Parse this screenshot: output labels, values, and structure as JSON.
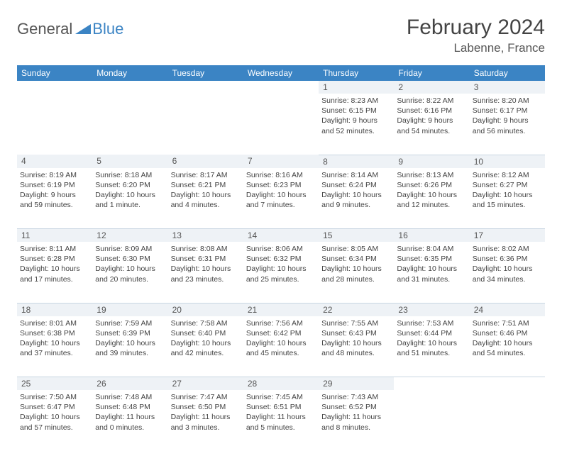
{
  "logo": {
    "general": "General",
    "blue": "Blue"
  },
  "title": "February 2024",
  "location": "Labenne, France",
  "colors": {
    "header_bg": "#3b84c4",
    "header_text": "#ffffff",
    "daynum_bg": "#eef2f6",
    "row_divider": "#c9d6e2",
    "body_text": "#444444",
    "page_bg": "#ffffff"
  },
  "weekday_labels": [
    "Sunday",
    "Monday",
    "Tuesday",
    "Wednesday",
    "Thursday",
    "Friday",
    "Saturday"
  ],
  "weeks": [
    {
      "nums": [
        "",
        "",
        "",
        "",
        "1",
        "2",
        "3"
      ],
      "cells": [
        null,
        null,
        null,
        null,
        {
          "sunrise": "Sunrise: 8:23 AM",
          "sunset": "Sunset: 6:15 PM",
          "daylight": "Daylight: 9 hours and 52 minutes."
        },
        {
          "sunrise": "Sunrise: 8:22 AM",
          "sunset": "Sunset: 6:16 PM",
          "daylight": "Daylight: 9 hours and 54 minutes."
        },
        {
          "sunrise": "Sunrise: 8:20 AM",
          "sunset": "Sunset: 6:17 PM",
          "daylight": "Daylight: 9 hours and 56 minutes."
        }
      ]
    },
    {
      "nums": [
        "4",
        "5",
        "6",
        "7",
        "8",
        "9",
        "10"
      ],
      "cells": [
        {
          "sunrise": "Sunrise: 8:19 AM",
          "sunset": "Sunset: 6:19 PM",
          "daylight": "Daylight: 9 hours and 59 minutes."
        },
        {
          "sunrise": "Sunrise: 8:18 AM",
          "sunset": "Sunset: 6:20 PM",
          "daylight": "Daylight: 10 hours and 1 minute."
        },
        {
          "sunrise": "Sunrise: 8:17 AM",
          "sunset": "Sunset: 6:21 PM",
          "daylight": "Daylight: 10 hours and 4 minutes."
        },
        {
          "sunrise": "Sunrise: 8:16 AM",
          "sunset": "Sunset: 6:23 PM",
          "daylight": "Daylight: 10 hours and 7 minutes."
        },
        {
          "sunrise": "Sunrise: 8:14 AM",
          "sunset": "Sunset: 6:24 PM",
          "daylight": "Daylight: 10 hours and 9 minutes."
        },
        {
          "sunrise": "Sunrise: 8:13 AM",
          "sunset": "Sunset: 6:26 PM",
          "daylight": "Daylight: 10 hours and 12 minutes."
        },
        {
          "sunrise": "Sunrise: 8:12 AM",
          "sunset": "Sunset: 6:27 PM",
          "daylight": "Daylight: 10 hours and 15 minutes."
        }
      ]
    },
    {
      "nums": [
        "11",
        "12",
        "13",
        "14",
        "15",
        "16",
        "17"
      ],
      "cells": [
        {
          "sunrise": "Sunrise: 8:11 AM",
          "sunset": "Sunset: 6:28 PM",
          "daylight": "Daylight: 10 hours and 17 minutes."
        },
        {
          "sunrise": "Sunrise: 8:09 AM",
          "sunset": "Sunset: 6:30 PM",
          "daylight": "Daylight: 10 hours and 20 minutes."
        },
        {
          "sunrise": "Sunrise: 8:08 AM",
          "sunset": "Sunset: 6:31 PM",
          "daylight": "Daylight: 10 hours and 23 minutes."
        },
        {
          "sunrise": "Sunrise: 8:06 AM",
          "sunset": "Sunset: 6:32 PM",
          "daylight": "Daylight: 10 hours and 25 minutes."
        },
        {
          "sunrise": "Sunrise: 8:05 AM",
          "sunset": "Sunset: 6:34 PM",
          "daylight": "Daylight: 10 hours and 28 minutes."
        },
        {
          "sunrise": "Sunrise: 8:04 AM",
          "sunset": "Sunset: 6:35 PM",
          "daylight": "Daylight: 10 hours and 31 minutes."
        },
        {
          "sunrise": "Sunrise: 8:02 AM",
          "sunset": "Sunset: 6:36 PM",
          "daylight": "Daylight: 10 hours and 34 minutes."
        }
      ]
    },
    {
      "nums": [
        "18",
        "19",
        "20",
        "21",
        "22",
        "23",
        "24"
      ],
      "cells": [
        {
          "sunrise": "Sunrise: 8:01 AM",
          "sunset": "Sunset: 6:38 PM",
          "daylight": "Daylight: 10 hours and 37 minutes."
        },
        {
          "sunrise": "Sunrise: 7:59 AM",
          "sunset": "Sunset: 6:39 PM",
          "daylight": "Daylight: 10 hours and 39 minutes."
        },
        {
          "sunrise": "Sunrise: 7:58 AM",
          "sunset": "Sunset: 6:40 PM",
          "daylight": "Daylight: 10 hours and 42 minutes."
        },
        {
          "sunrise": "Sunrise: 7:56 AM",
          "sunset": "Sunset: 6:42 PM",
          "daylight": "Daylight: 10 hours and 45 minutes."
        },
        {
          "sunrise": "Sunrise: 7:55 AM",
          "sunset": "Sunset: 6:43 PM",
          "daylight": "Daylight: 10 hours and 48 minutes."
        },
        {
          "sunrise": "Sunrise: 7:53 AM",
          "sunset": "Sunset: 6:44 PM",
          "daylight": "Daylight: 10 hours and 51 minutes."
        },
        {
          "sunrise": "Sunrise: 7:51 AM",
          "sunset": "Sunset: 6:46 PM",
          "daylight": "Daylight: 10 hours and 54 minutes."
        }
      ]
    },
    {
      "nums": [
        "25",
        "26",
        "27",
        "28",
        "29",
        "",
        ""
      ],
      "cells": [
        {
          "sunrise": "Sunrise: 7:50 AM",
          "sunset": "Sunset: 6:47 PM",
          "daylight": "Daylight: 10 hours and 57 minutes."
        },
        {
          "sunrise": "Sunrise: 7:48 AM",
          "sunset": "Sunset: 6:48 PM",
          "daylight": "Daylight: 11 hours and 0 minutes."
        },
        {
          "sunrise": "Sunrise: 7:47 AM",
          "sunset": "Sunset: 6:50 PM",
          "daylight": "Daylight: 11 hours and 3 minutes."
        },
        {
          "sunrise": "Sunrise: 7:45 AM",
          "sunset": "Sunset: 6:51 PM",
          "daylight": "Daylight: 11 hours and 5 minutes."
        },
        {
          "sunrise": "Sunrise: 7:43 AM",
          "sunset": "Sunset: 6:52 PM",
          "daylight": "Daylight: 11 hours and 8 minutes."
        },
        null,
        null
      ]
    }
  ]
}
